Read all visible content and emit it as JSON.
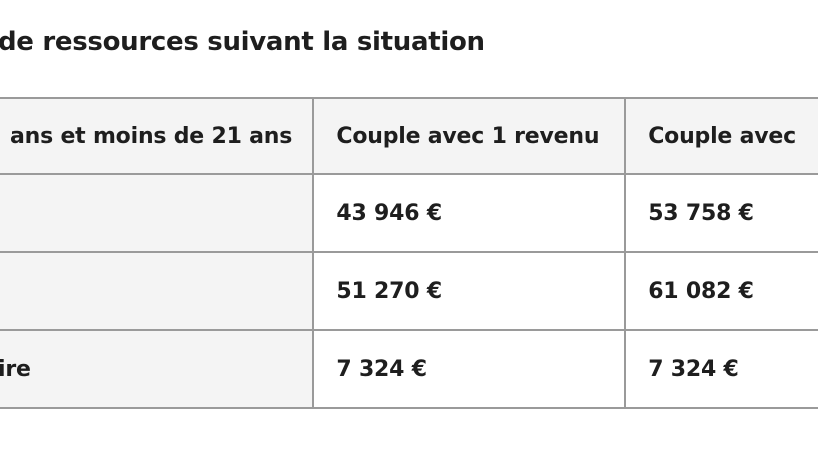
{
  "table": {
    "caption": "de ressources suivant la situation",
    "headers": [
      "ans et moins de 21 ans",
      "Couple avec 1 revenu",
      "Couple avec"
    ],
    "rows": [
      {
        "label": "",
        "values": [
          "43 946 €",
          "53 758 €"
        ]
      },
      {
        "label": "",
        "values": [
          "51 270 €",
          "61 082 €"
        ]
      },
      {
        "label": "ire",
        "values": [
          "7 324 €",
          "7 324 €"
        ]
      }
    ]
  }
}
